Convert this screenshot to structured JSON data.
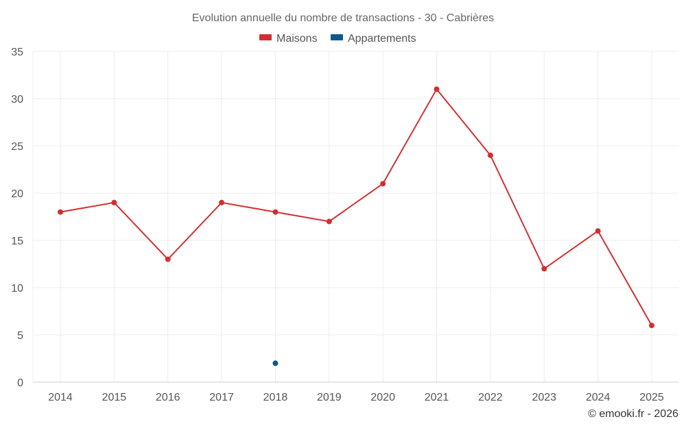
{
  "chart_data": {
    "type": "line",
    "title": "Evolution annuelle du nombre de transactions - 30 - Cabrières",
    "categories": [
      "2014",
      "2015",
      "2016",
      "2017",
      "2018",
      "2019",
      "2020",
      "2021",
      "2022",
      "2023",
      "2024",
      "2025"
    ],
    "ylim": [
      0,
      35
    ],
    "yticks": [
      0,
      5,
      10,
      15,
      20,
      25,
      30,
      35
    ],
    "grid": true,
    "legend_position": "top-center",
    "series": [
      {
        "name": "Maisons",
        "color": "#d32f2f",
        "values": [
          18,
          19,
          13,
          19,
          18,
          17,
          21,
          31,
          24,
          12,
          16,
          6
        ]
      },
      {
        "name": "Appartements",
        "color": "#0a5a8f",
        "values": [
          null,
          null,
          null,
          null,
          2,
          null,
          null,
          null,
          null,
          null,
          null,
          null
        ]
      }
    ]
  },
  "credit": "© emooki.fr - 2026"
}
